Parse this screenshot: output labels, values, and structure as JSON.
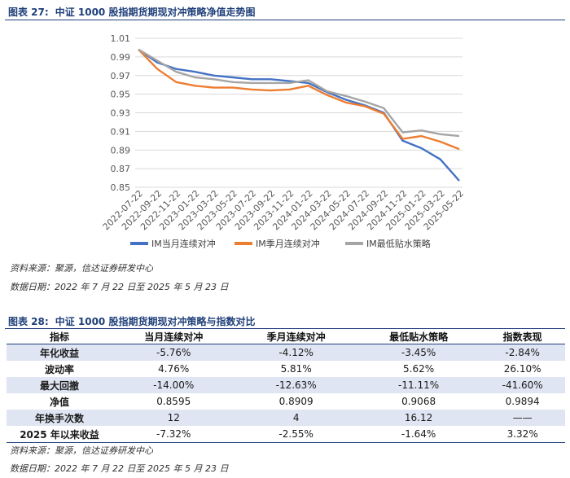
{
  "figure1": {
    "label": "图表 27:",
    "title": "中证 1000 股指期货期现对冲策略净值走势图",
    "source": "资料来源：聚源，信达证券研发中心",
    "date_range": "数据日期：2022 年 7 月 22 日至 2025 年 5 月 23 日"
  },
  "figure2": {
    "label": "图表 28:",
    "title": "中证 1000 股指期货期现对冲策略与指数对比",
    "source": "资料来源：聚源，信达证券研发中心",
    "date_range": "数据日期：2022 年 7 月 22 日至 2025 年 5 月 23 日"
  },
  "table": {
    "headers": [
      "指标",
      "当月连续对冲",
      "季月连续对冲",
      "最低贴水策略",
      "指数表现"
    ],
    "rows": [
      [
        "年化收益",
        "-5.76%",
        "-4.12%",
        "-3.45%",
        "-2.84%"
      ],
      [
        "波动率",
        "4.76%",
        "5.81%",
        "5.62%",
        "26.10%"
      ],
      [
        "最大回撤",
        "-14.00%",
        "-12.63%",
        "-11.11%",
        "-41.60%"
      ],
      [
        "净值",
        "0.8595",
        "0.8909",
        "0.9068",
        "0.9894"
      ],
      [
        "年换手次数",
        "12",
        "4",
        "16.12",
        "——"
      ],
      [
        "2025 年以来收益",
        "-7.32%",
        "-2.55%",
        "-1.64%",
        "3.32%"
      ]
    ]
  },
  "chart_data": {
    "type": "line",
    "title": "",
    "xlabel": "",
    "ylabel": "",
    "ylim": [
      0.85,
      1.01
    ],
    "yticks": [
      "1.01",
      "0.99",
      "0.97",
      "0.95",
      "0.93",
      "0.91",
      "0.89",
      "0.87",
      "0.85"
    ],
    "grid": "horizontal",
    "legend": "bottom",
    "x": [
      "2022-07-22",
      "2022-09-22",
      "2022-11-22",
      "2023-01-22",
      "2023-03-22",
      "2023-05-22",
      "2023-07-22",
      "2023-09-22",
      "2023-11-22",
      "2024-01-22",
      "2024-03-22",
      "2024-05-22",
      "2024-07-22",
      "2024-09-22",
      "2024-11-22",
      "2025-01-22",
      "2025-03-22",
      "2025-05-22"
    ],
    "series": [
      {
        "name": "IM当月连续对冲",
        "color": "#4472c4",
        "values": [
          0.998,
          0.984,
          0.977,
          0.974,
          0.97,
          0.968,
          0.966,
          0.966,
          0.964,
          0.962,
          0.952,
          0.944,
          0.938,
          0.93,
          0.9,
          0.892,
          0.88,
          0.857
        ]
      },
      {
        "name": "IM季月连续对冲",
        "color": "#ed7d31",
        "values": [
          0.998,
          0.977,
          0.963,
          0.959,
          0.957,
          0.957,
          0.955,
          0.954,
          0.955,
          0.959,
          0.949,
          0.941,
          0.937,
          0.929,
          0.902,
          0.905,
          0.899,
          0.891
        ]
      },
      {
        "name": "IM最低贴水策略",
        "color": "#a5a5a5",
        "values": [
          0.998,
          0.986,
          0.974,
          0.968,
          0.966,
          0.963,
          0.962,
          0.962,
          0.962,
          0.965,
          0.953,
          0.948,
          0.942,
          0.935,
          0.909,
          0.911,
          0.907,
          0.905
        ]
      }
    ]
  }
}
